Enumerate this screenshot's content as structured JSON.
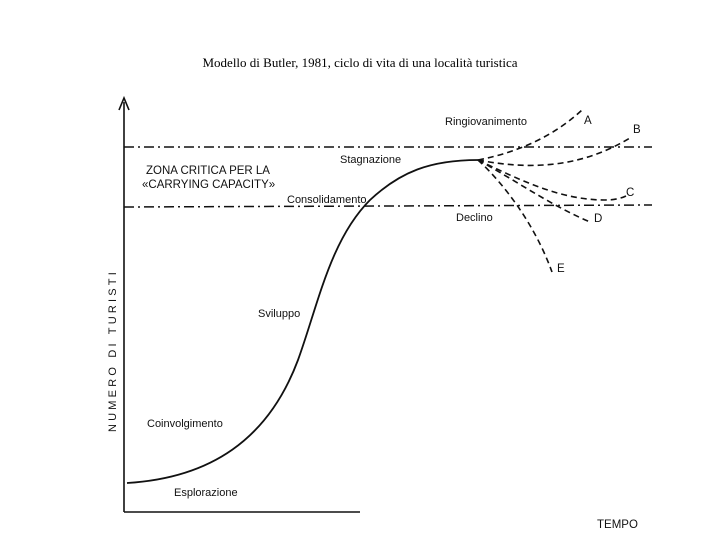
{
  "caption": "Modello di Butler, 1981, ciclo di vita di una località turistica",
  "y_axis_label": "NUMERO DI TURISTI",
  "x_axis_label": "TEMPO",
  "critical_zone": {
    "line1": "ZONA CRITICA PER LA",
    "line2": "«CARRYING CAPACITY»"
  },
  "stages": {
    "esplorazione": "Esplorazione",
    "coinvolgimento": "Coinvolgimento",
    "sviluppo": "Sviluppo",
    "consolidamento": "Consolidamento",
    "stagnazione": "Stagnazione",
    "ringiovanimento": "Ringiovanimento",
    "declino": "Declino"
  },
  "scenarios": [
    "A",
    "B",
    "C",
    "D",
    "E"
  ]
}
